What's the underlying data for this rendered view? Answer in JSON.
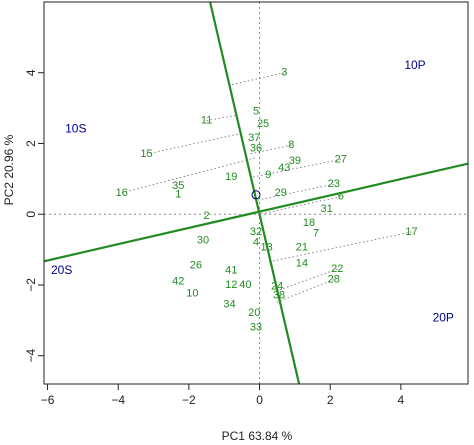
{
  "chart_data": {
    "type": "scatter",
    "title": "",
    "xlabel": "PC1 63.84 %",
    "ylabel": "PC2 20.96 %",
    "xlim": [
      -6.1,
      5.9
    ],
    "ylim": [
      -4.8,
      6.0
    ],
    "x_ticks": [
      -6,
      -4,
      -2,
      0,
      2,
      4
    ],
    "y_ticks": [
      -4,
      -2,
      0,
      2,
      4
    ],
    "grid": false,
    "colors": {
      "genotype": "#228b22",
      "environment": "#00008b",
      "axis_line": "#228b22",
      "origin": "#00008b",
      "projection": "#777777",
      "reference": "#888888"
    },
    "origin_marker": "o",
    "genotypes": [
      {
        "label": "3",
        "x": 0.7,
        "y": 4.0
      },
      {
        "label": "5",
        "x": -0.1,
        "y": 2.9
      },
      {
        "label": "11",
        "x": -1.5,
        "y": 2.65
      },
      {
        "label": "25",
        "x": 0.1,
        "y": 2.55
      },
      {
        "label": "37",
        "x": -0.15,
        "y": 2.15
      },
      {
        "label": "8",
        "x": 0.9,
        "y": 1.95
      },
      {
        "label": "36",
        "x": -0.1,
        "y": 1.85
      },
      {
        "label": "15",
        "x": -3.2,
        "y": 1.7
      },
      {
        "label": "27",
        "x": 2.3,
        "y": 1.55
      },
      {
        "label": "39",
        "x": 1.0,
        "y": 1.5
      },
      {
        "label": "43",
        "x": 0.7,
        "y": 1.3
      },
      {
        "label": "9",
        "x": 0.25,
        "y": 1.1
      },
      {
        "label": "19",
        "x": -0.8,
        "y": 1.05
      },
      {
        "label": "35",
        "x": -2.3,
        "y": 0.8
      },
      {
        "label": "23",
        "x": 2.1,
        "y": 0.85
      },
      {
        "label": "16",
        "x": -3.9,
        "y": 0.6
      },
      {
        "label": "1",
        "x": -2.3,
        "y": 0.55
      },
      {
        "label": "29",
        "x": 0.6,
        "y": 0.6
      },
      {
        "label": "6",
        "x": 2.3,
        "y": 0.5
      },
      {
        "label": "31",
        "x": 1.9,
        "y": 0.15
      },
      {
        "label": "2",
        "x": -1.5,
        "y": -0.05
      },
      {
        "label": "18",
        "x": 1.4,
        "y": -0.25
      },
      {
        "label": "32",
        "x": -0.1,
        "y": -0.5
      },
      {
        "label": "7",
        "x": 1.6,
        "y": -0.55
      },
      {
        "label": "17",
        "x": 4.3,
        "y": -0.5
      },
      {
        "label": "30",
        "x": -1.6,
        "y": -0.75
      },
      {
        "label": "4",
        "x": -0.1,
        "y": -0.8
      },
      {
        "label": "13",
        "x": 0.2,
        "y": -0.95
      },
      {
        "label": "21",
        "x": 1.2,
        "y": -0.95
      },
      {
        "label": "26",
        "x": -1.8,
        "y": -1.45
      },
      {
        "label": "14",
        "x": 1.2,
        "y": -1.4
      },
      {
        "label": "41",
        "x": -0.8,
        "y": -1.6
      },
      {
        "label": "22",
        "x": 2.2,
        "y": -1.55
      },
      {
        "label": "42",
        "x": -2.3,
        "y": -1.9
      },
      {
        "label": "28",
        "x": 2.1,
        "y": -1.85
      },
      {
        "label": "12",
        "x": -0.8,
        "y": -2.0
      },
      {
        "label": "40",
        "x": -0.4,
        "y": -2.0
      },
      {
        "label": "24",
        "x": 0.5,
        "y": -2.05
      },
      {
        "label": "10",
        "x": -1.9,
        "y": -2.25
      },
      {
        "label": "38",
        "x": 0.55,
        "y": -2.3
      },
      {
        "label": "34",
        "x": -0.85,
        "y": -2.55
      },
      {
        "label": "20",
        "x": -0.15,
        "y": -2.8
      },
      {
        "label": "33",
        "x": -0.1,
        "y": -3.2
      }
    ],
    "environments": [
      {
        "label": "10P",
        "x": 4.4,
        "y": 4.2
      },
      {
        "label": "10S",
        "x": -5.2,
        "y": 2.4
      },
      {
        "label": "20S",
        "x": -5.6,
        "y": -1.6
      },
      {
        "label": "20P",
        "x": 5.2,
        "y": -2.95
      }
    ],
    "reference_lines": {
      "x": 0,
      "y": 0
    },
    "green_lines": [
      {
        "label": "",
        "x1": -6.1,
        "y1": -1.33,
        "x2": 5.9,
        "y2": 1.43
      },
      {
        "label": "",
        "x1": -1.4,
        "y1": 6.0,
        "x2": 1.12,
        "y2": -4.8
      }
    ],
    "projection_ends": [
      {
        "label": "3",
        "x": -0.85,
        "y": 3.65
      },
      {
        "label": "11",
        "x": -0.6,
        "y": 2.8
      },
      {
        "label": "15",
        "x": -0.45,
        "y": 2.3
      },
      {
        "label": "8",
        "x": -0.3,
        "y": 1.7
      },
      {
        "label": "27",
        "x": -0.2,
        "y": 1.05
      },
      {
        "label": "16",
        "x": -0.1,
        "y": 1.6
      },
      {
        "label": "23",
        "x": -0.05,
        "y": 0.4
      },
      {
        "label": "6",
        "x": 0.0,
        "y": 0.0
      },
      {
        "label": "17",
        "x": 0.25,
        "y": -1.35
      },
      {
        "label": "22",
        "x": 0.4,
        "y": -2.2
      },
      {
        "label": "28",
        "x": 0.45,
        "y": -2.5
      }
    ]
  }
}
